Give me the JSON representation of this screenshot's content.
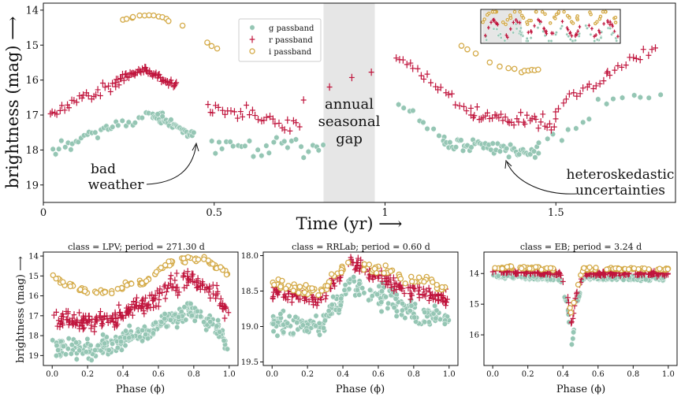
{
  "colors": {
    "g": "#95c6b4",
    "r": "#c0143c",
    "i": "#d4aa47",
    "gap": "#e6e6e6"
  },
  "chart_data": [
    {
      "type": "scatter",
      "id": "main",
      "xlabel": "Time (yr) ⟶",
      "ylabel": "brightness (mag) ⟶",
      "xlim": [
        0,
        1.85
      ],
      "ylim": [
        19.5,
        13.8
      ],
      "y_inverted": true,
      "xticks": [
        "0",
        "0.5",
        "1",
        "1.5"
      ],
      "xtick_values": [
        0,
        0.5,
        1,
        1.5
      ],
      "yticks": [
        "14",
        "15",
        "16",
        "17",
        "18",
        "19"
      ],
      "ytick_values": [
        14,
        15,
        16,
        17,
        18,
        19
      ],
      "legend": {
        "position": "top-center",
        "entries": [
          "g passband",
          "r passband",
          "i passband"
        ]
      },
      "shaded_region": {
        "x": [
          0.82,
          0.97
        ],
        "label_lines": [
          "annual",
          "seasonal",
          "gap"
        ]
      },
      "annotations": [
        {
          "lines": [
            "bad",
            "weather"
          ],
          "points_to": [
            0.45,
            17.8
          ]
        },
        {
          "lines": [
            "heteroskedastic",
            "uncertainties"
          ],
          "points_to": [
            1.35,
            18.4
          ]
        }
      ],
      "series": [
        {
          "name": "g passband",
          "band": "g",
          "segments": [
            {
              "x": [
                0.03,
                0.2
              ],
              "y": [
                18.0,
                17.35
              ],
              "n": 22,
              "scatter": 0.14
            },
            {
              "x": [
                0.2,
                0.35
              ],
              "y": [
                17.35,
                16.9
              ],
              "n": 16,
              "scatter": 0.12
            },
            {
              "x": [
                0.32,
                0.44
              ],
              "y": [
                17.0,
                17.6
              ],
              "n": 34,
              "scatter": 0.13
            },
            {
              "x": [
                0.49,
                0.82
              ],
              "y": [
                17.9,
                17.95
              ],
              "n": 30,
              "scatter": 0.22
            },
            {
              "x": [
                1.04,
                1.17
              ],
              "y": [
                16.7,
                17.6
              ],
              "n": 10,
              "scatter": 0.15
            },
            {
              "x": [
                1.17,
                1.45
              ],
              "y": [
                17.75,
                18.1
              ],
              "n": 55,
              "scatter": 0.18
            },
            {
              "x": [
                1.45,
                1.6
              ],
              "y": [
                17.9,
                17.2
              ],
              "n": 8,
              "scatter": 0.2
            },
            {
              "x": [
                1.62,
                1.8
              ],
              "y": [
                16.6,
                16.45
              ],
              "n": 8,
              "scatter": 0.12
            }
          ]
        },
        {
          "name": "r passband",
          "band": "r",
          "segments": [
            {
              "x": [
                0.02,
                0.21
              ],
              "y": [
                17.0,
                16.05
              ],
              "n": 28,
              "scatter": 0.14
            },
            {
              "x": [
                0.21,
                0.3
              ],
              "y": [
                16.05,
                15.65
              ],
              "n": 26,
              "scatter": 0.08
            },
            {
              "x": [
                0.3,
                0.39
              ],
              "y": [
                15.7,
                16.2
              ],
              "n": 28,
              "scatter": 0.1
            },
            {
              "x": [
                0.48,
                0.75
              ],
              "y": [
                16.8,
                17.3
              ],
              "n": 32,
              "scatter": 0.22
            },
            {
              "x": [
                0.76,
                0.96
              ],
              "y": [
                16.5,
                15.8
              ],
              "n": 4,
              "scatter": 0.1
            },
            {
              "x": [
                1.03,
                1.25
              ],
              "y": [
                15.3,
                16.9
              ],
              "n": 22,
              "scatter": 0.15
            },
            {
              "x": [
                1.25,
                1.5
              ],
              "y": [
                17.0,
                17.2
              ],
              "n": 40,
              "scatter": 0.16
            },
            {
              "x": [
                1.5,
                1.65
              ],
              "y": [
                16.8,
                15.9
              ],
              "n": 16,
              "scatter": 0.16
            },
            {
              "x": [
                1.65,
                1.79
              ],
              "y": [
                15.8,
                15.1
              ],
              "n": 14,
              "scatter": 0.1
            }
          ]
        },
        {
          "name": "i passband",
          "band": "i",
          "segments": [
            {
              "x": [
                0.23,
                0.26
              ],
              "y": [
                14.3,
                14.2
              ],
              "n": 3,
              "scatter": 0.03
            },
            {
              "x": [
                0.26,
                0.3
              ],
              "y": [
                14.2,
                14.17
              ],
              "n": 3,
              "scatter": 0.02
            },
            {
              "x": [
                0.31,
                0.36
              ],
              "y": [
                14.12,
                14.25
              ],
              "n": 5,
              "scatter": 0.03
            },
            {
              "x": [
                0.37,
                0.41
              ],
              "y": [
                14.3,
                14.45
              ],
              "n": 2,
              "scatter": 0.03
            },
            {
              "x": [
                0.48,
                0.51
              ],
              "y": [
                14.95,
                15.1
              ],
              "n": 3,
              "scatter": 0.03
            },
            {
              "x": [
                1.22,
                1.27
              ],
              "y": [
                15.0,
                15.25
              ],
              "n": 3,
              "scatter": 0.05
            },
            {
              "x": [
                1.31,
                1.38
              ],
              "y": [
                15.5,
                15.7
              ],
              "n": 4,
              "scatter": 0.05
            },
            {
              "x": [
                1.4,
                1.45
              ],
              "y": [
                15.75,
                15.7
              ],
              "n": 6,
              "scatter": 0.03
            }
          ]
        }
      ]
    },
    {
      "type": "scatter",
      "id": "lpv",
      "title": "class  =  LPV; period = 271.30 d",
      "xlabel": "Phase (ϕ)",
      "ylabel": "brightness (mag) ⟶",
      "xlim": [
        -0.05,
        1.05
      ],
      "ylim": [
        19.5,
        13.8
      ],
      "xticks": [
        "0.0",
        "0.2",
        "0.4",
        "0.6",
        "0.8",
        "1.0"
      ],
      "xtick_values": [
        0,
        0.2,
        0.4,
        0.6,
        0.8,
        1.0
      ],
      "yticks": [
        "14",
        "15",
        "16",
        "17",
        "18",
        "19"
      ],
      "ytick_values": [
        14,
        15,
        16,
        17,
        18,
        19
      ],
      "series": [
        {
          "band": "g",
          "curve": {
            "x": [
              0,
              0.2,
              0.3,
              0.5,
              0.7,
              0.78,
              0.9,
              1.0
            ],
            "y": [
              18.5,
              18.7,
              18.5,
              17.9,
              17.0,
              16.8,
              17.4,
              18.3
            ]
          },
          "n": 260,
          "scatter": 0.4
        },
        {
          "band": "r",
          "curve": {
            "x": [
              0,
              0.2,
              0.3,
              0.5,
              0.7,
              0.78,
              0.9,
              1.0
            ],
            "y": [
              17.1,
              17.3,
              17.2,
              16.5,
              15.5,
              15.2,
              15.7,
              16.8
            ]
          },
          "n": 230,
          "scatter": 0.38
        },
        {
          "band": "i",
          "curve": {
            "x": [
              0,
              0.08,
              0.2,
              0.3,
              0.5,
              0.7,
              0.78,
              0.85,
              0.95,
              1.0
            ],
            "y": [
              15.0,
              15.4,
              15.8,
              15.8,
              15.3,
              14.3,
              14.1,
              14.2,
              14.6,
              15.0
            ]
          },
          "n": 95,
          "scatter": 0.12
        }
      ]
    },
    {
      "type": "scatter",
      "id": "rrlab",
      "title": "class  =  RRLab; period = 0.60 d",
      "xlabel": "Phase (ϕ)",
      "xlim": [
        -0.05,
        1.05
      ],
      "ylim": [
        19.55,
        17.95
      ],
      "xticks": [
        "0.0",
        "0.2",
        "0.4",
        "0.6",
        "0.8",
        "1.0"
      ],
      "xtick_values": [
        0,
        0.2,
        0.4,
        0.6,
        0.8,
        1.0
      ],
      "yticks": [
        "18.0",
        "18.5",
        "19.0",
        "19.5"
      ],
      "ytick_values": [
        18.0,
        18.5,
        19.0,
        19.5
      ],
      "series": [
        {
          "band": "g",
          "curve": {
            "x": [
              0,
              0.28,
              0.36,
              0.45,
              0.6,
              0.8,
              1.0
            ],
            "y": [
              18.95,
              19.0,
              18.7,
              18.4,
              18.55,
              18.8,
              18.9
            ]
          },
          "n": 230,
          "scatter": 0.14
        },
        {
          "band": "r",
          "curve": {
            "x": [
              0,
              0.28,
              0.36,
              0.45,
              0.6,
              0.8,
              1.0
            ],
            "y": [
              18.55,
              18.6,
              18.35,
              18.1,
              18.3,
              18.5,
              18.6
            ]
          },
          "n": 200,
          "scatter": 0.09
        },
        {
          "band": "i",
          "curve": {
            "x": [
              0,
              0.28,
              0.36,
              0.45,
              0.6,
              0.8,
              1.0
            ],
            "y": [
              18.42,
              18.5,
              18.25,
              18.1,
              18.2,
              18.35,
              18.45
            ]
          },
          "n": 90,
          "scatter": 0.06
        }
      ]
    },
    {
      "type": "scatter",
      "id": "eb",
      "title": "class  =  EB; period = 3.24 d",
      "xlabel": "Phase (ϕ)",
      "xlim": [
        -0.05,
        1.05
      ],
      "ylim": [
        17.0,
        13.3
      ],
      "xticks": [
        "0.0",
        "0.2",
        "0.4",
        "0.6",
        "0.8",
        "1.0"
      ],
      "xtick_values": [
        0,
        0.2,
        0.4,
        0.6,
        0.8,
        1.0
      ],
      "yticks": [
        "14",
        "15",
        "16"
      ],
      "ytick_values": [
        14,
        15,
        16
      ],
      "series": [
        {
          "band": "g",
          "curve": {
            "x": [
              0,
              0.38,
              0.42,
              0.45,
              0.48,
              0.52,
              1.0
            ],
            "y": [
              14.1,
              14.15,
              14.9,
              16.3,
              14.9,
              14.15,
              14.15
            ]
          },
          "n": 210,
          "scatter": 0.06
        },
        {
          "band": "r",
          "curve": {
            "x": [
              0,
              0.38,
              0.42,
              0.45,
              0.48,
              0.52,
              1.0
            ],
            "y": [
              13.95,
              14.0,
              14.6,
              15.6,
              14.6,
              14.0,
              14.0
            ]
          },
          "n": 190,
          "scatter": 0.05
        },
        {
          "band": "i",
          "curve": {
            "x": [
              0,
              0.38,
              0.42,
              0.45,
              0.48,
              0.52,
              1.0
            ],
            "y": [
              13.8,
              13.85,
              14.4,
              15.3,
              14.4,
              13.85,
              13.85
            ]
          },
          "n": 80,
          "scatter": 0.04
        }
      ]
    }
  ]
}
